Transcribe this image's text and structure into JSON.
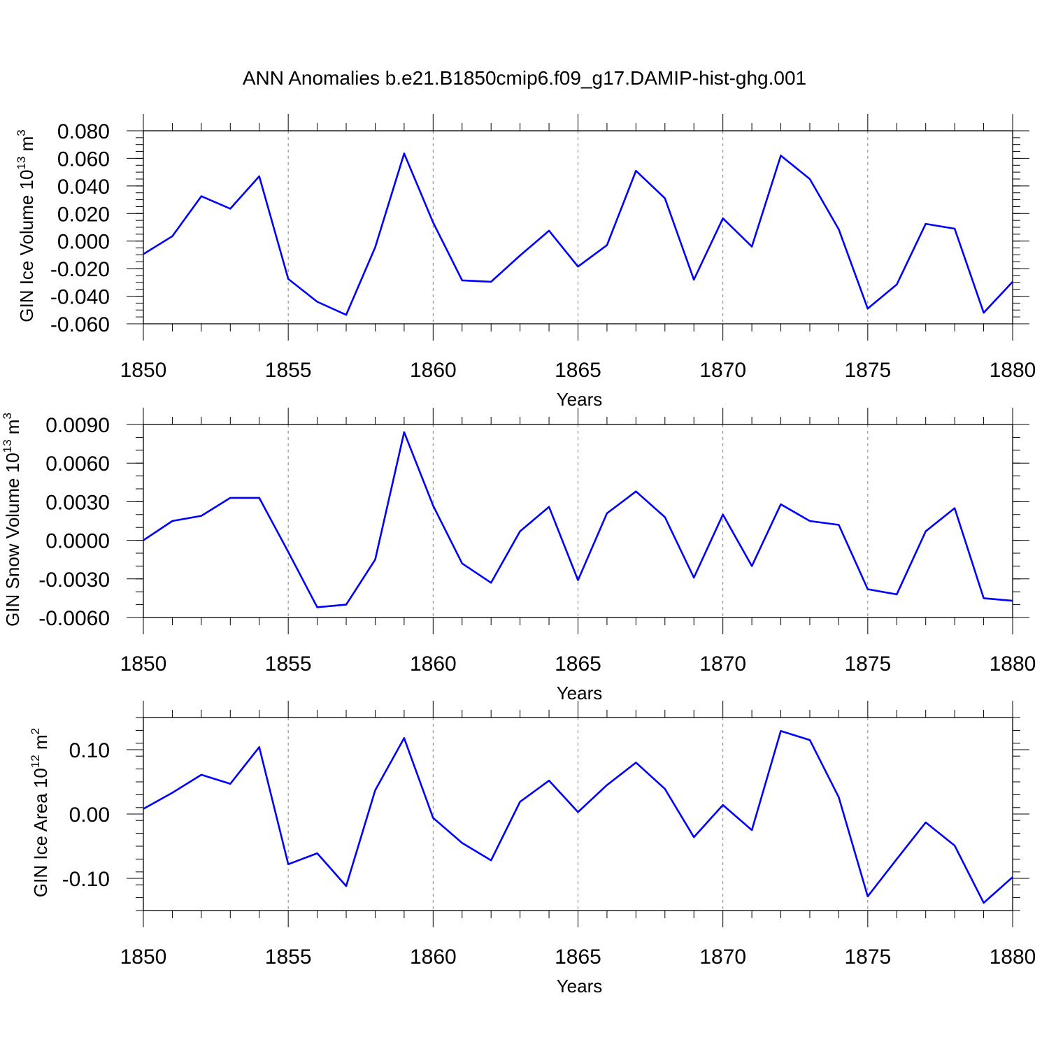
{
  "figure": {
    "title": "ANN Anomalies b.e21.B1850cmip6.f09_g17.DAMIP-hist-ghg.001"
  },
  "style": {
    "line_color": "#0000ff",
    "axis_color": "#000000",
    "grid_color": "#808080"
  },
  "chart_data": [
    {
      "type": "line",
      "title": "",
      "xlabel": "Years",
      "ylabel": "GIN Ice Volume 10",
      "ylabel_exp": "13",
      "ylabel_unit": "m",
      "ylabel_unit_exp": "3",
      "xlim": [
        1850,
        1880
      ],
      "ylim": [
        -0.06,
        0.08
      ],
      "x_ticks": [
        1850,
        1855,
        1860,
        1865,
        1870,
        1875,
        1880
      ],
      "x_tick_labels": [
        "1850",
        "1855",
        "1860",
        "1865",
        "1870",
        "1875",
        "1880"
      ],
      "y_ticks": [
        -0.06,
        -0.04,
        -0.02,
        0.0,
        0.02,
        0.04,
        0.06,
        0.08
      ],
      "y_tick_labels": [
        "-0.060",
        "-0.040",
        "-0.020",
        "0.000",
        "0.020",
        "0.040",
        "0.060",
        "0.080"
      ],
      "y_minor_step": 0.005,
      "grid": "vertical dashed at major x ticks",
      "x": [
        1850,
        1851,
        1852,
        1853,
        1854,
        1855,
        1856,
        1857,
        1858,
        1859,
        1860,
        1861,
        1862,
        1863,
        1864,
        1865,
        1866,
        1867,
        1868,
        1869,
        1870,
        1871,
        1872,
        1873,
        1874,
        1875,
        1876,
        1877,
        1878,
        1879,
        1880
      ],
      "y": [
        -0.0095,
        0.0035,
        0.0325,
        0.0235,
        0.047,
        -0.0275,
        -0.044,
        -0.0535,
        -0.0045,
        0.0635,
        0.0135,
        -0.0285,
        -0.0295,
        -0.0105,
        0.0075,
        -0.0185,
        -0.003,
        0.051,
        0.031,
        -0.028,
        0.0165,
        -0.004,
        0.062,
        0.045,
        0.0085,
        -0.049,
        -0.0315,
        0.0125,
        0.009,
        -0.052,
        -0.0295
      ]
    },
    {
      "type": "line",
      "title": "",
      "xlabel": "Years",
      "ylabel": "GIN Snow Volume 10",
      "ylabel_exp": "13",
      "ylabel_unit": "m",
      "ylabel_unit_exp": "3",
      "xlim": [
        1850,
        1880
      ],
      "ylim": [
        -0.006,
        0.009
      ],
      "x_ticks": [
        1850,
        1855,
        1860,
        1865,
        1870,
        1875,
        1880
      ],
      "x_tick_labels": [
        "1850",
        "1855",
        "1860",
        "1865",
        "1870",
        "1875",
        "1880"
      ],
      "y_ticks": [
        -0.006,
        -0.003,
        0.0,
        0.003,
        0.006,
        0.009
      ],
      "y_tick_labels": [
        "-0.0060",
        "-0.0030",
        "0.0000",
        "0.0030",
        "0.0060",
        "0.0090"
      ],
      "y_minor_step": 0.001,
      "grid": "vertical dashed at major x ticks",
      "x": [
        1850,
        1851,
        1852,
        1853,
        1854,
        1855,
        1856,
        1857,
        1858,
        1859,
        1860,
        1861,
        1862,
        1863,
        1864,
        1865,
        1866,
        1867,
        1868,
        1869,
        1870,
        1871,
        1872,
        1873,
        1874,
        1875,
        1876,
        1877,
        1878,
        1879,
        1880
      ],
      "y": [
        0.0,
        0.0015,
        0.0019,
        0.0033,
        0.0033,
        -0.0009,
        -0.0052,
        -0.005,
        -0.0015,
        0.0084,
        0.0027,
        -0.0018,
        -0.0033,
        0.0007,
        0.0026,
        -0.0031,
        0.0021,
        0.0038,
        0.0018,
        -0.0029,
        0.002,
        -0.002,
        0.0028,
        0.0015,
        0.0012,
        -0.0038,
        -0.0042,
        0.0007,
        0.0025,
        -0.0045,
        -0.0047
      ]
    },
    {
      "type": "line",
      "title": "",
      "xlabel": "Years",
      "ylabel": "GIN Ice Area 10",
      "ylabel_exp": "12",
      "ylabel_unit": "m",
      "ylabel_unit_exp": "2",
      "xlim": [
        1850,
        1880
      ],
      "ylim": [
        -0.15,
        0.15
      ],
      "x_ticks": [
        1850,
        1855,
        1860,
        1865,
        1870,
        1875,
        1880
      ],
      "x_tick_labels": [
        "1850",
        "1855",
        "1860",
        "1865",
        "1870",
        "1875",
        "1880"
      ],
      "y_ticks": [
        -0.1,
        0.0,
        0.1
      ],
      "y_tick_labels": [
        "-0.10",
        "0.00",
        "0.10"
      ],
      "y_minor_step": 0.02,
      "grid": "vertical dashed at major x ticks",
      "x": [
        1850,
        1851,
        1852,
        1853,
        1854,
        1855,
        1856,
        1857,
        1858,
        1859,
        1860,
        1861,
        1862,
        1863,
        1864,
        1865,
        1866,
        1867,
        1868,
        1869,
        1870,
        1871,
        1872,
        1873,
        1874,
        1875,
        1876,
        1877,
        1878,
        1879,
        1880
      ],
      "y": [
        0.008,
        0.033,
        0.061,
        0.047,
        0.104,
        -0.078,
        -0.061,
        -0.112,
        0.037,
        0.118,
        -0.006,
        -0.045,
        -0.072,
        0.019,
        0.052,
        0.003,
        0.045,
        0.08,
        0.039,
        -0.036,
        0.014,
        -0.025,
        0.129,
        0.115,
        0.026,
        -0.128,
        -0.07,
        -0.013,
        -0.049,
        -0.138,
        -0.098
      ]
    }
  ]
}
